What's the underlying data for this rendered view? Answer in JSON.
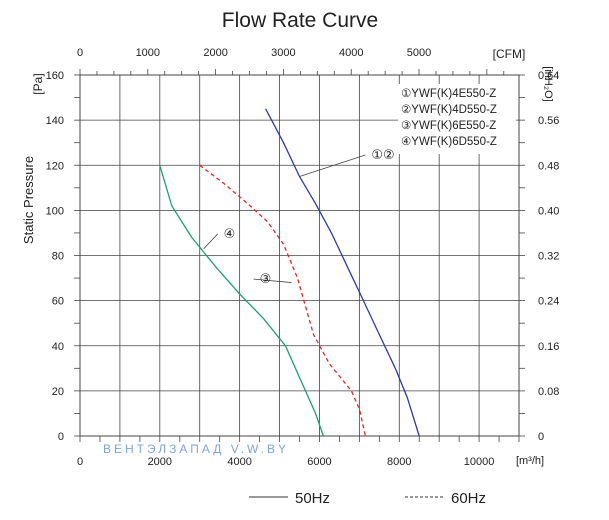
{
  "chart_data": {
    "type": "line",
    "title": "Flow Rate Curve",
    "ylabel": "Static Pressure",
    "y_unit": "[Pa]",
    "x_unit": "[m³/h]",
    "x2_unit": "[CFM]",
    "y2_unit": "[inH₂O]",
    "xlim": [
      0,
      11000
    ],
    "ylim": [
      0,
      160
    ],
    "x_ticks": [
      0,
      2000,
      4000,
      6000,
      8000,
      10000
    ],
    "x2_ticks": [
      0,
      1000,
      2000,
      3000,
      4000,
      5000
    ],
    "x2_ticks_m3h": [
      0,
      1699,
      3398,
      5097,
      6796,
      8495
    ],
    "y_ticks": [
      0,
      20,
      40,
      60,
      80,
      100,
      120,
      140,
      160
    ],
    "y2_ticks": [
      "0",
      "0.08",
      "0.16",
      "0.24",
      "0.32",
      "0.40",
      "0.48",
      "0.56",
      "0.64"
    ],
    "grid": true,
    "legend_position": "top-right",
    "legend_items": [
      "①YWF(K)4E550-Z",
      "②YWF(K)4D550-Z",
      "③YWF(K)6E550-Z",
      "④YWF(K)6D550-Z"
    ],
    "frequency_legend": [
      {
        "label": "50Hz",
        "style": "solid"
      },
      {
        "label": "60Hz",
        "style": "dashed"
      }
    ],
    "watermark": "ВЕНТЭЛЗАПАД V.W.BY",
    "series": [
      {
        "curve_label": "①②",
        "color": "#2b3aa8",
        "style": "solid",
        "points": [
          [
            4650,
            145
          ],
          [
            5100,
            130
          ],
          [
            5500,
            115
          ],
          [
            5900,
            103
          ],
          [
            6300,
            90
          ],
          [
            6700,
            75
          ],
          [
            7100,
            60
          ],
          [
            7500,
            45
          ],
          [
            7900,
            30
          ],
          [
            8200,
            17
          ],
          [
            8500,
            0
          ]
        ]
      },
      {
        "curve_label": "③",
        "color": "#d92b2b",
        "style": "dashed",
        "points": [
          [
            3000,
            120
          ],
          [
            3600,
            112
          ],
          [
            4200,
            103
          ],
          [
            4700,
            95
          ],
          [
            5100,
            85
          ],
          [
            5450,
            70
          ],
          [
            5850,
            45
          ],
          [
            6250,
            32
          ],
          [
            6800,
            20
          ],
          [
            7000,
            12
          ],
          [
            7150,
            0
          ]
        ]
      },
      {
        "curve_label": "④",
        "color": "#1f9e6e",
        "style": "solid",
        "points": [
          [
            2000,
            120
          ],
          [
            2300,
            102
          ],
          [
            2800,
            88
          ],
          [
            3400,
            75
          ],
          [
            4000,
            63
          ],
          [
            4600,
            52
          ],
          [
            5150,
            40
          ],
          [
            5600,
            22
          ],
          [
            5900,
            10
          ],
          [
            6100,
            0
          ]
        ]
      }
    ],
    "annotations": [
      {
        "text": "①②",
        "x": 7300,
        "y": 125
      },
      {
        "text": "④",
        "x": 3600,
        "y": 90
      },
      {
        "text": "③",
        "x": 4500,
        "y": 70
      }
    ]
  }
}
